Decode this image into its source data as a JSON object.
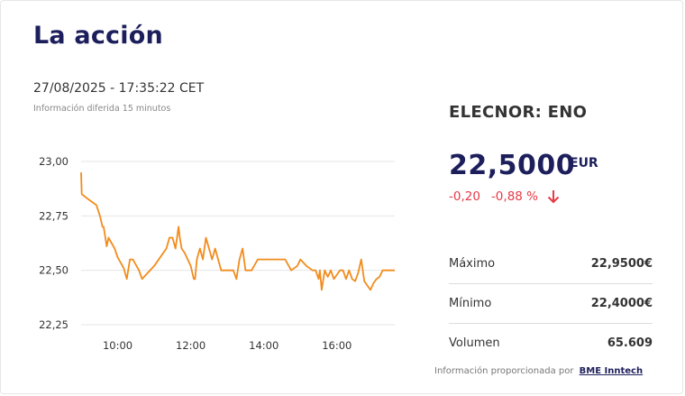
{
  "page": {
    "title": "La acción",
    "datetime": "27/08/2025 - 17:35:22 CET",
    "delay_note": "Información diferida 15 minutos"
  },
  "quote": {
    "ticker": "ELECNOR: ENO",
    "price": "22,5000",
    "currency": "EUR",
    "change": "-0,20",
    "change_pct": "-0,88 %",
    "direction": "down"
  },
  "stats": [
    {
      "label": "Máximo",
      "value": "22,9500€"
    },
    {
      "label": "Mínimo",
      "value": "22,4000€"
    },
    {
      "label": "Volumen",
      "value": "65.609"
    }
  ],
  "source": {
    "text": "Información proporcionada por",
    "link": "BME Inntech"
  },
  "colors": {
    "title": "#1d1f5c",
    "line": "#f28c1e",
    "down": "#e63946",
    "grid": "#e4e4e4"
  },
  "chart_data": {
    "type": "line",
    "xlabel": "",
    "ylabel": "",
    "ylim": [
      22.25,
      23.0
    ],
    "xlim": [
      "09:00",
      "17:35"
    ],
    "grid": true,
    "yticks": [
      "23,00",
      "22,75",
      "22,50",
      "22,25"
    ],
    "ytick_values": [
      23.0,
      22.75,
      22.5,
      22.25
    ],
    "xticks": [
      "10:00",
      "12:00",
      "14:00",
      "16:00"
    ],
    "xtick_values": [
      "10:00",
      "12:00",
      "14:00",
      "16:00"
    ],
    "series": [
      {
        "x": [
          "09:00",
          "09:01",
          "09:10",
          "09:20",
          "09:25",
          "09:31",
          "09:35",
          "09:37",
          "09:42",
          "09:45",
          "09:55",
          "10:00",
          "10:10",
          "10:15",
          "10:20",
          "10:25",
          "10:35",
          "10:40",
          "10:50",
          "11:00",
          "11:10",
          "11:20",
          "11:25",
          "11:30",
          "11:35",
          "11:40",
          "11:42",
          "11:45",
          "11:50",
          "12:00",
          "12:05",
          "12:07",
          "12:10",
          "12:15",
          "12:20",
          "12:25",
          "12:30",
          "12:35",
          "12:40",
          "12:50",
          "13:00",
          "13:10",
          "13:15",
          "13:20",
          "13:25",
          "13:30",
          "13:35",
          "13:40",
          "13:50",
          "14:00",
          "14:10",
          "14:20",
          "14:30",
          "14:35",
          "14:45",
          "14:55",
          "15:00",
          "15:10",
          "15:20",
          "15:25",
          "15:30",
          "15:32",
          "15:35",
          "15:40",
          "15:45",
          "15:50",
          "15:55",
          "16:00",
          "16:05",
          "16:10",
          "16:15",
          "16:20",
          "16:25",
          "16:30",
          "16:35",
          "16:40",
          "16:45",
          "16:50",
          "16:55",
          "17:00",
          "17:05",
          "17:10",
          "17:15",
          "17:20",
          "17:35"
        ],
        "y": [
          22.95,
          22.85,
          22.83,
          22.81,
          22.8,
          22.75,
          22.7,
          22.7,
          22.61,
          22.65,
          22.6,
          22.56,
          22.51,
          22.46,
          22.55,
          22.55,
          22.5,
          22.46,
          22.49,
          22.52,
          22.56,
          22.6,
          22.65,
          22.65,
          22.6,
          22.7,
          22.65,
          22.6,
          22.58,
          22.52,
          22.46,
          22.46,
          22.55,
          22.6,
          22.55,
          22.65,
          22.6,
          22.55,
          22.6,
          22.5,
          22.5,
          22.5,
          22.46,
          22.55,
          22.6,
          22.5,
          22.5,
          22.5,
          22.55,
          22.55,
          22.55,
          22.55,
          22.55,
          22.55,
          22.5,
          22.52,
          22.55,
          22.52,
          22.5,
          22.5,
          22.46,
          22.5,
          22.41,
          22.5,
          22.47,
          22.5,
          22.46,
          22.48,
          22.5,
          22.5,
          22.46,
          22.5,
          22.46,
          22.45,
          22.49,
          22.55,
          22.45,
          22.43,
          22.41,
          22.44,
          22.46,
          22.47,
          22.5,
          22.5,
          22.5
        ]
      }
    ]
  }
}
